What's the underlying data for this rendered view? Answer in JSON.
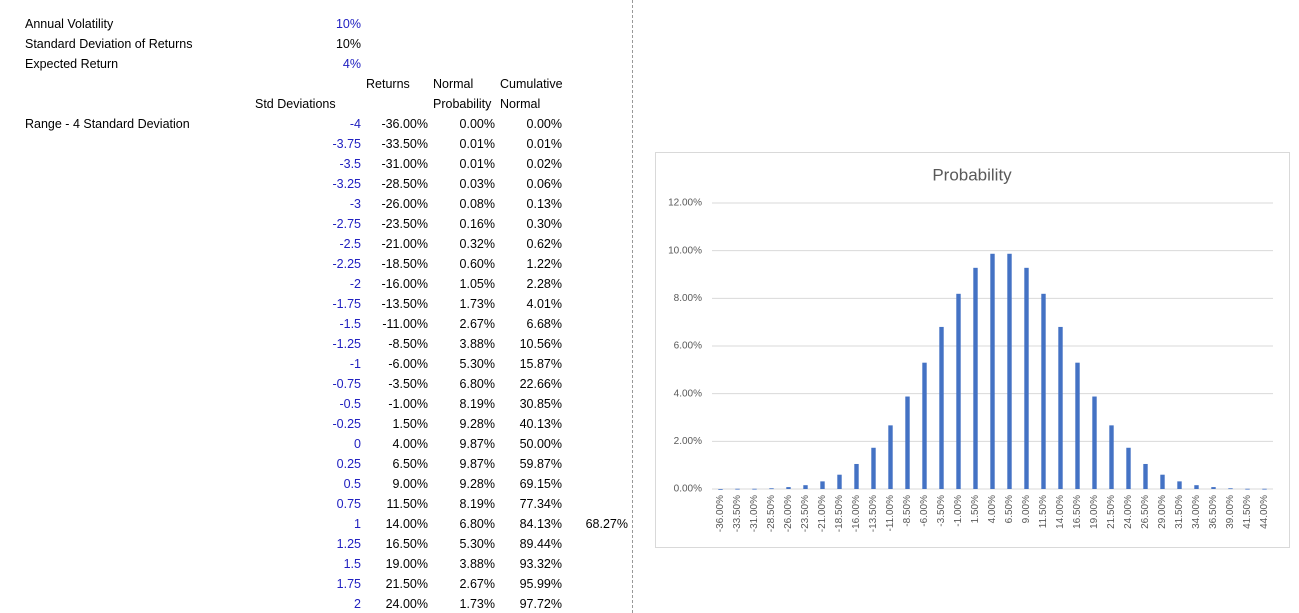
{
  "inputs": [
    {
      "label": "Annual Volatility",
      "value": "10%"
    },
    {
      "label": "Standard Deviation of Returns",
      "value": "10%"
    },
    {
      "label": "Expected Return",
      "value": "4%"
    }
  ],
  "header_row1": [
    "Returns",
    "Normal",
    "Cumulative"
  ],
  "header_row2": [
    "Std Deviations",
    "Probability",
    "Normal"
  ],
  "range_label": "Range - 4 Standard Deviation",
  "rows": [
    [
      "-4",
      "-36.00%",
      "0.00%",
      "0.00%"
    ],
    [
      "-3.75",
      "-33.50%",
      "0.01%",
      "0.01%"
    ],
    [
      "-3.5",
      "-31.00%",
      "0.01%",
      "0.02%"
    ],
    [
      "-3.25",
      "-28.50%",
      "0.03%",
      "0.06%"
    ],
    [
      "-3",
      "-26.00%",
      "0.08%",
      "0.13%"
    ],
    [
      "-2.75",
      "-23.50%",
      "0.16%",
      "0.30%"
    ],
    [
      "-2.5",
      "-21.00%",
      "0.32%",
      "0.62%"
    ],
    [
      "-2.25",
      "-18.50%",
      "0.60%",
      "1.22%"
    ],
    [
      "-2",
      "-16.00%",
      "1.05%",
      "2.28%"
    ],
    [
      "-1.75",
      "-13.50%",
      "1.73%",
      "4.01%"
    ],
    [
      "-1.5",
      "-11.00%",
      "2.67%",
      "6.68%"
    ],
    [
      "-1.25",
      "-8.50%",
      "3.88%",
      "10.56%"
    ],
    [
      "-1",
      "-6.00%",
      "5.30%",
      "15.87%"
    ],
    [
      "-0.75",
      "-3.50%",
      "6.80%",
      "22.66%"
    ],
    [
      "-0.5",
      "-1.00%",
      "8.19%",
      "30.85%"
    ],
    [
      "-0.25",
      "1.50%",
      "9.28%",
      "40.13%"
    ],
    [
      "0",
      "4.00%",
      "9.87%",
      "50.00%"
    ],
    [
      "0.25",
      "6.50%",
      "9.87%",
      "59.87%"
    ],
    [
      "0.5",
      "9.00%",
      "9.28%",
      "69.15%"
    ],
    [
      "0.75",
      "11.50%",
      "8.19%",
      "77.34%"
    ],
    [
      "1",
      "14.00%",
      "6.80%",
      "84.13%"
    ],
    [
      "1.25",
      "16.50%",
      "5.30%",
      "89.44%"
    ],
    [
      "1.5",
      "19.00%",
      "3.88%",
      "93.32%"
    ],
    [
      "1.75",
      "21.50%",
      "2.67%",
      "95.99%"
    ],
    [
      "2",
      "24.00%",
      "1.73%",
      "97.72%"
    ]
  ],
  "band_total": "68.27%",
  "chart_data": {
    "type": "bar",
    "title": "Probability",
    "color": "#4472c4",
    "grid": true,
    "categories": [
      "-36.00%",
      "-33.50%",
      "-31.00%",
      "-28.50%",
      "-26.00%",
      "-23.50%",
      "-21.00%",
      "-18.50%",
      "-16.00%",
      "-13.50%",
      "-11.00%",
      "-8.50%",
      "-6.00%",
      "-3.50%",
      "-1.00%",
      "1.50%",
      "4.00%",
      "6.50%",
      "9.00%",
      "11.50%",
      "14.00%",
      "16.50%",
      "19.00%",
      "21.50%",
      "24.00%",
      "26.50%",
      "29.00%",
      "31.50%",
      "34.00%",
      "36.50%",
      "39.00%",
      "41.50%",
      "44.00%"
    ],
    "values": [
      0.0,
      0.01,
      0.01,
      0.03,
      0.08,
      0.16,
      0.32,
      0.6,
      1.05,
      1.73,
      2.67,
      3.88,
      5.3,
      6.8,
      8.19,
      9.28,
      9.87,
      9.87,
      9.28,
      8.19,
      6.8,
      5.3,
      3.88,
      2.67,
      1.73,
      1.05,
      0.6,
      0.32,
      0.16,
      0.08,
      0.03,
      0.01,
      0.01
    ],
    "ylim": [
      0,
      12
    ],
    "yticks": [
      {
        "value": 0,
        "label": "0.00%"
      },
      {
        "value": 2,
        "label": "2.00%"
      },
      {
        "value": 4,
        "label": "4.00%"
      },
      {
        "value": 6,
        "label": "6.00%"
      },
      {
        "value": 8,
        "label": "8.00%"
      },
      {
        "value": 10,
        "label": "10.00%"
      },
      {
        "value": 12,
        "label": "12.00%"
      }
    ]
  }
}
